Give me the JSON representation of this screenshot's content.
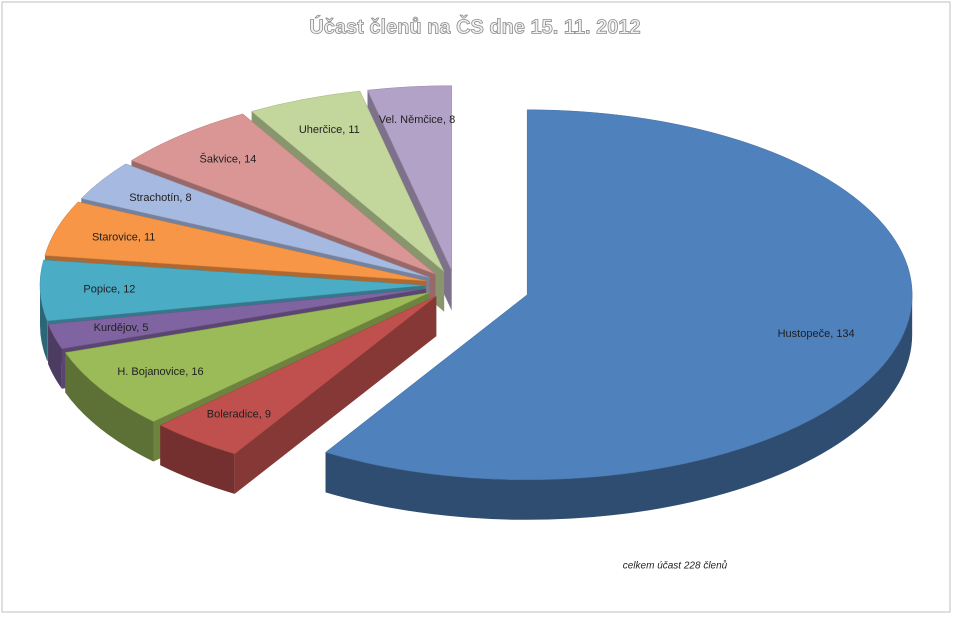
{
  "chart_data": {
    "type": "pie",
    "title": "Účast členů na ČS dne 15. 11. 2012",
    "note": "celkem účast 228 členů",
    "categories": [
      "Hustopeče",
      "Boleradice",
      "H. Bojanovice",
      "Kurdějov",
      "Popice",
      "Starovice",
      "Strachotín",
      "Šakvice",
      "Uherčice",
      "Vel. Němčice"
    ],
    "values": [
      134,
      9,
      16,
      5,
      12,
      11,
      8,
      14,
      11,
      8
    ],
    "colors": [
      "#4f81bd",
      "#c0504d",
      "#9bbb59",
      "#8064a2",
      "#4bacc6",
      "#f79646",
      "#a6b9e0",
      "#d99694",
      "#c3d69b",
      "#b3a2c7"
    ]
  }
}
